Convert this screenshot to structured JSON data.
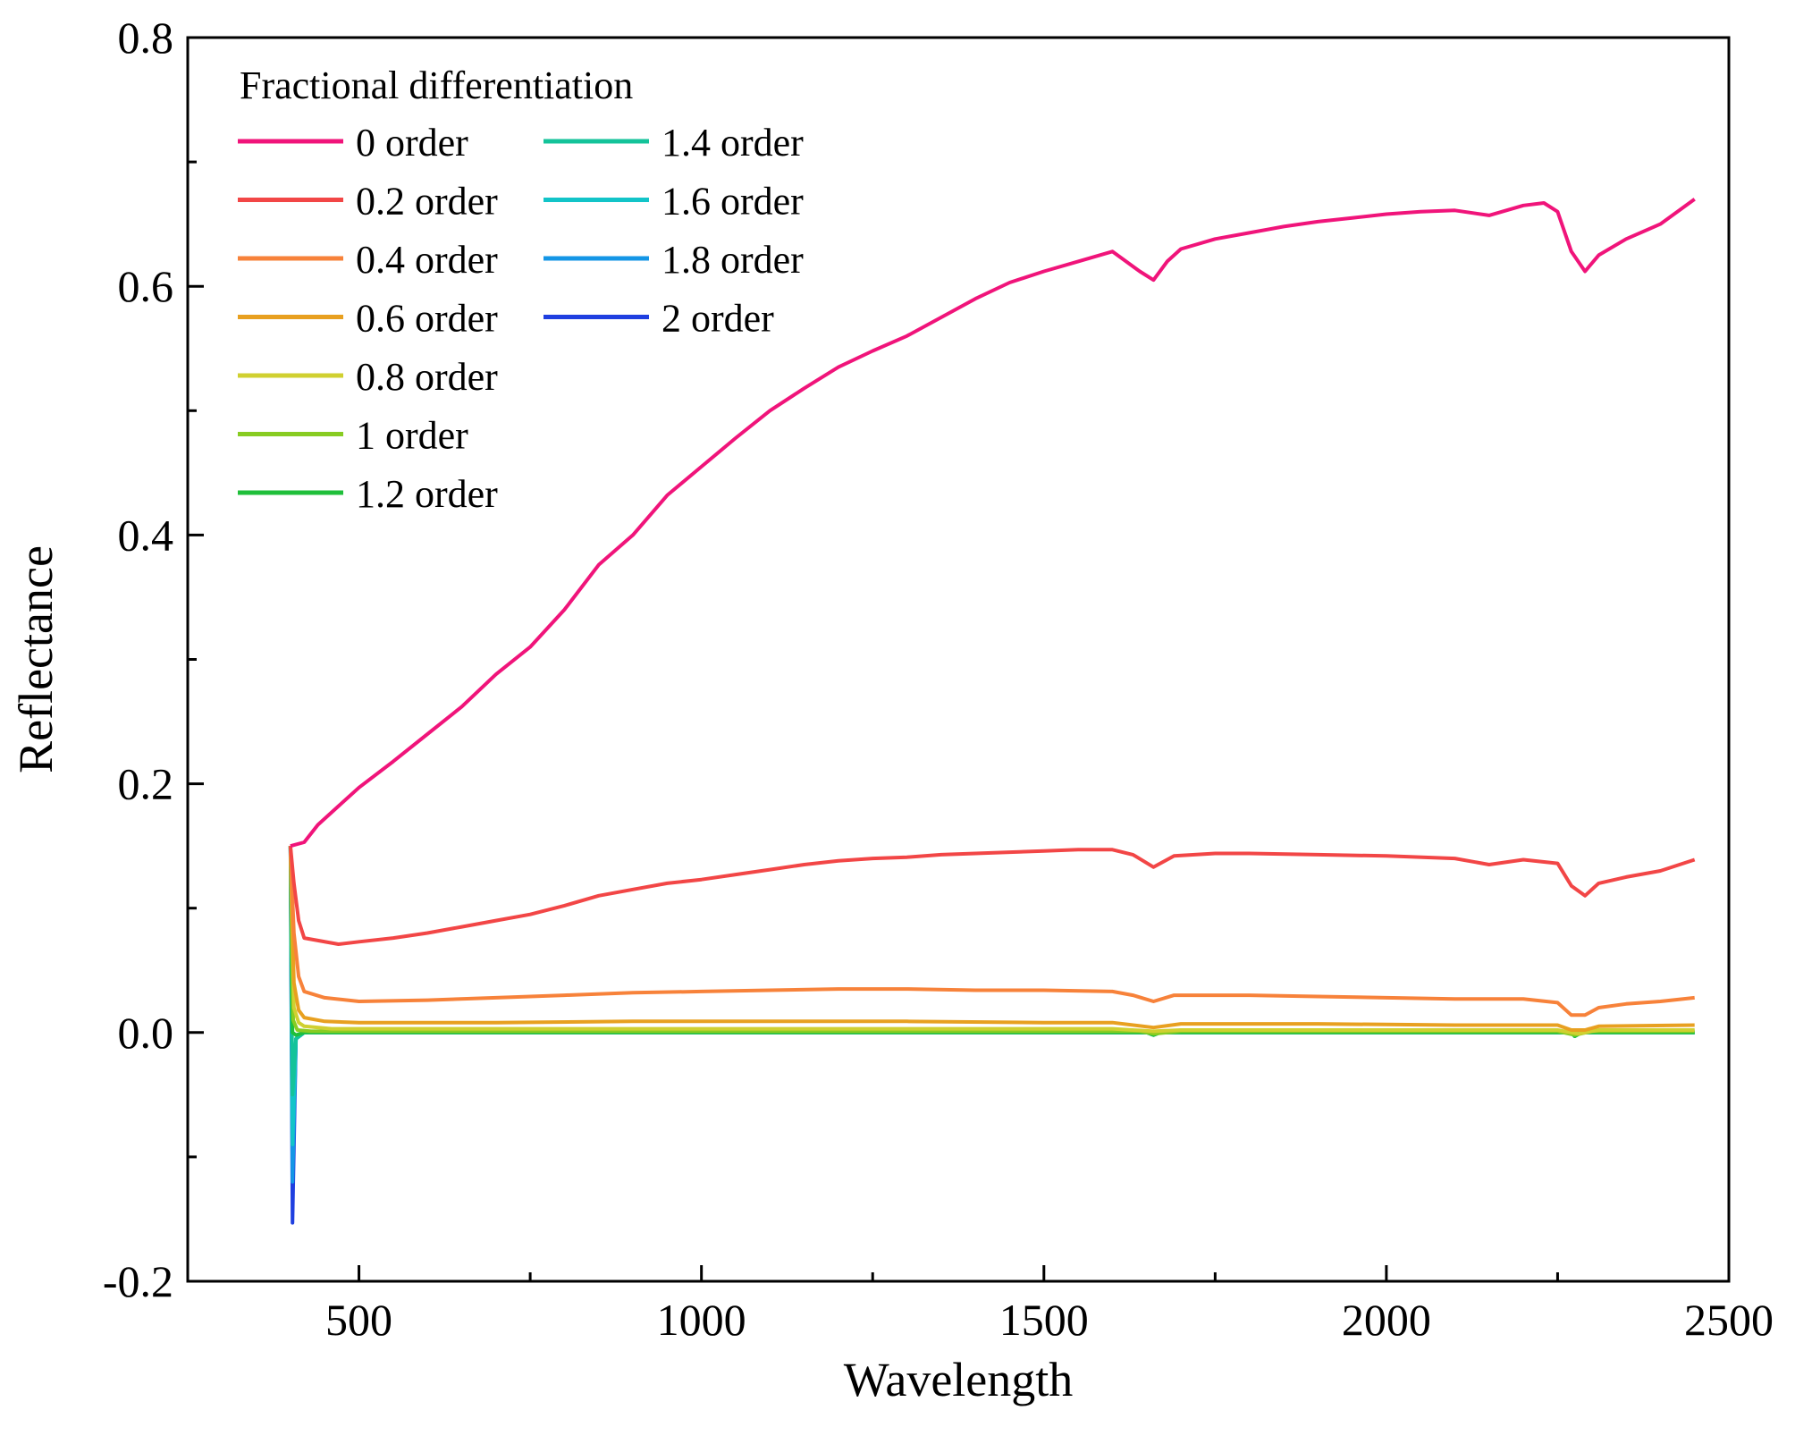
{
  "chart_data": {
    "type": "line",
    "title": "",
    "xlabel": "Wavelength",
    "ylabel": "Reflectance",
    "xlim": [
      250,
      2500
    ],
    "ylim": [
      -0.2,
      0.8
    ],
    "xticks": [
      500,
      1000,
      1500,
      2000,
      2500
    ],
    "xtick_labels": [
      "500",
      "1000",
      "1500",
      "2000",
      "2500"
    ],
    "yticks": [
      -0.2,
      0.0,
      0.2,
      0.4,
      0.6,
      0.8
    ],
    "ytick_labels": [
      "-0.2",
      "0.0",
      "0.2",
      "0.4",
      "0.6",
      "0.8"
    ],
    "grid": false,
    "legend": {
      "title": "Fractional differentiation",
      "position": "top-left"
    },
    "series": [
      {
        "name": "0 order",
        "color": "#f0147a",
        "x": [
          400,
          420,
          440,
          470,
          500,
          550,
          600,
          650,
          700,
          750,
          800,
          850,
          900,
          950,
          1000,
          1050,
          1100,
          1150,
          1200,
          1250,
          1300,
          1350,
          1400,
          1450,
          1500,
          1550,
          1600,
          1620,
          1640,
          1660,
          1680,
          1700,
          1750,
          1800,
          1850,
          1900,
          1950,
          2000,
          2050,
          2100,
          2150,
          2200,
          2230,
          2250,
          2270,
          2290,
          2310,
          2350,
          2400,
          2450
        ],
        "y": [
          0.15,
          0.153,
          0.167,
          0.182,
          0.197,
          0.218,
          0.24,
          0.262,
          0.288,
          0.31,
          0.34,
          0.376,
          0.4,
          0.432,
          0.455,
          0.478,
          0.5,
          0.518,
          0.535,
          0.548,
          0.56,
          0.575,
          0.59,
          0.603,
          0.612,
          0.62,
          0.628,
          0.62,
          0.612,
          0.605,
          0.62,
          0.63,
          0.638,
          0.643,
          0.648,
          0.652,
          0.655,
          0.658,
          0.66,
          0.661,
          0.657,
          0.665,
          0.667,
          0.66,
          0.628,
          0.612,
          0.625,
          0.638,
          0.65,
          0.67
        ]
      },
      {
        "name": "0.2 order",
        "color": "#f24646",
        "x": [
          400,
          405,
          412,
          420,
          440,
          470,
          500,
          550,
          600,
          650,
          700,
          750,
          800,
          850,
          900,
          950,
          1000,
          1050,
          1100,
          1150,
          1200,
          1250,
          1300,
          1350,
          1400,
          1450,
          1500,
          1550,
          1600,
          1630,
          1660,
          1690,
          1750,
          1800,
          1900,
          2000,
          2100,
          2150,
          2200,
          2250,
          2270,
          2290,
          2310,
          2350,
          2400,
          2450
        ],
        "y": [
          0.15,
          0.12,
          0.09,
          0.076,
          0.074,
          0.071,
          0.073,
          0.076,
          0.08,
          0.085,
          0.09,
          0.095,
          0.102,
          0.11,
          0.115,
          0.12,
          0.123,
          0.127,
          0.131,
          0.135,
          0.138,
          0.14,
          0.141,
          0.143,
          0.144,
          0.145,
          0.146,
          0.147,
          0.147,
          0.143,
          0.133,
          0.142,
          0.144,
          0.144,
          0.143,
          0.142,
          0.14,
          0.135,
          0.139,
          0.136,
          0.118,
          0.11,
          0.12,
          0.125,
          0.13,
          0.139
        ]
      },
      {
        "name": "0.4 order",
        "color": "#f7823a",
        "x": [
          400,
          405,
          412,
          420,
          450,
          500,
          600,
          700,
          800,
          900,
          1000,
          1100,
          1200,
          1300,
          1400,
          1500,
          1600,
          1630,
          1660,
          1690,
          1800,
          1900,
          2000,
          2100,
          2200,
          2250,
          2270,
          2290,
          2310,
          2350,
          2400,
          2450
        ],
        "y": [
          0.15,
          0.08,
          0.045,
          0.033,
          0.028,
          0.025,
          0.026,
          0.028,
          0.03,
          0.032,
          0.033,
          0.034,
          0.035,
          0.035,
          0.034,
          0.034,
          0.033,
          0.03,
          0.025,
          0.03,
          0.03,
          0.029,
          0.028,
          0.027,
          0.027,
          0.024,
          0.014,
          0.014,
          0.02,
          0.023,
          0.025,
          0.028
        ]
      },
      {
        "name": "0.6 order",
        "color": "#e8a020",
        "x": [
          400,
          405,
          412,
          420,
          450,
          500,
          700,
          900,
          1100,
          1300,
          1500,
          1600,
          1660,
          1700,
          1900,
          2100,
          2250,
          2270,
          2290,
          2310,
          2450
        ],
        "y": [
          0.15,
          0.04,
          0.018,
          0.012,
          0.009,
          0.008,
          0.008,
          0.009,
          0.009,
          0.009,
          0.008,
          0.008,
          0.004,
          0.007,
          0.007,
          0.006,
          0.006,
          0.002,
          0.002,
          0.005,
          0.006
        ]
      },
      {
        "name": "0.8 order",
        "color": "#d0d030",
        "x": [
          400,
          405,
          412,
          420,
          460,
          600,
          800,
          1000,
          1200,
          1400,
          1600,
          1660,
          1700,
          2000,
          2250,
          2280,
          2310,
          2450
        ],
        "y": [
          0.15,
          0.02,
          0.008,
          0.005,
          0.003,
          0.003,
          0.003,
          0.003,
          0.003,
          0.003,
          0.003,
          0.001,
          0.002,
          0.002,
          0.002,
          -0.001,
          0.002,
          0.002
        ]
      },
      {
        "name": "1 order",
        "color": "#88cc22",
        "x": [
          400,
          404,
          410,
          430,
          600,
          1000,
          1400,
          1640,
          1660,
          1700,
          2250,
          2275,
          2300,
          2450
        ],
        "y": [
          0.15,
          0.01,
          0.002,
          0.001,
          0.001,
          0.001,
          0.001,
          0.001,
          -0.001,
          0.001,
          0.001,
          -0.002,
          0.001,
          0.001
        ]
      },
      {
        "name": "1.2 order",
        "color": "#1fbf3a",
        "x": [
          400,
          403,
          408,
          420,
          1000,
          1650,
          1660,
          1670,
          2270,
          2275,
          2285,
          2450
        ],
        "y": [
          0.15,
          0.0,
          -0.002,
          0.0,
          0.0,
          0.0,
          -0.002,
          0.0,
          0.0,
          -0.003,
          0.0,
          0.0
        ]
      },
      {
        "name": "1.4 order",
        "color": "#14c39a",
        "x": [
          400,
          403,
          408,
          420,
          1000,
          1650,
          1660,
          1670,
          2270,
          2275,
          2285,
          2450
        ],
        "y": [
          0.15,
          -0.05,
          -0.005,
          0.0,
          0.0,
          0.0,
          -0.002,
          0.0,
          0.0,
          -0.003,
          0.0,
          0.0
        ]
      },
      {
        "name": "1.6 order",
        "color": "#12c4c8",
        "x": [
          400,
          403,
          408,
          420,
          1000,
          1650,
          1660,
          1670,
          2270,
          2275,
          2285,
          2450
        ],
        "y": [
          0.15,
          -0.09,
          -0.005,
          0.0,
          0.0,
          0.0,
          -0.002,
          0.0,
          0.0,
          -0.003,
          0.0,
          0.0
        ]
      },
      {
        "name": "1.8 order",
        "color": "#1496e6",
        "x": [
          400,
          403,
          408,
          420,
          1000,
          1650,
          1660,
          1670,
          2270,
          2275,
          2285,
          2450
        ],
        "y": [
          0.15,
          -0.12,
          -0.005,
          0.0,
          0.0,
          0.0,
          -0.001,
          0.0,
          0.0,
          -0.002,
          0.0,
          0.0
        ]
      },
      {
        "name": "2 order",
        "color": "#1f3fe0",
        "x": [
          400,
          403,
          408,
          420,
          1000,
          1650,
          1660,
          1670,
          2270,
          2275,
          2285,
          2450
        ],
        "y": [
          0.15,
          -0.153,
          -0.005,
          0.0,
          0.0,
          0.0,
          -0.001,
          0.0,
          0.0,
          -0.001,
          0.0,
          0.0
        ]
      }
    ]
  }
}
